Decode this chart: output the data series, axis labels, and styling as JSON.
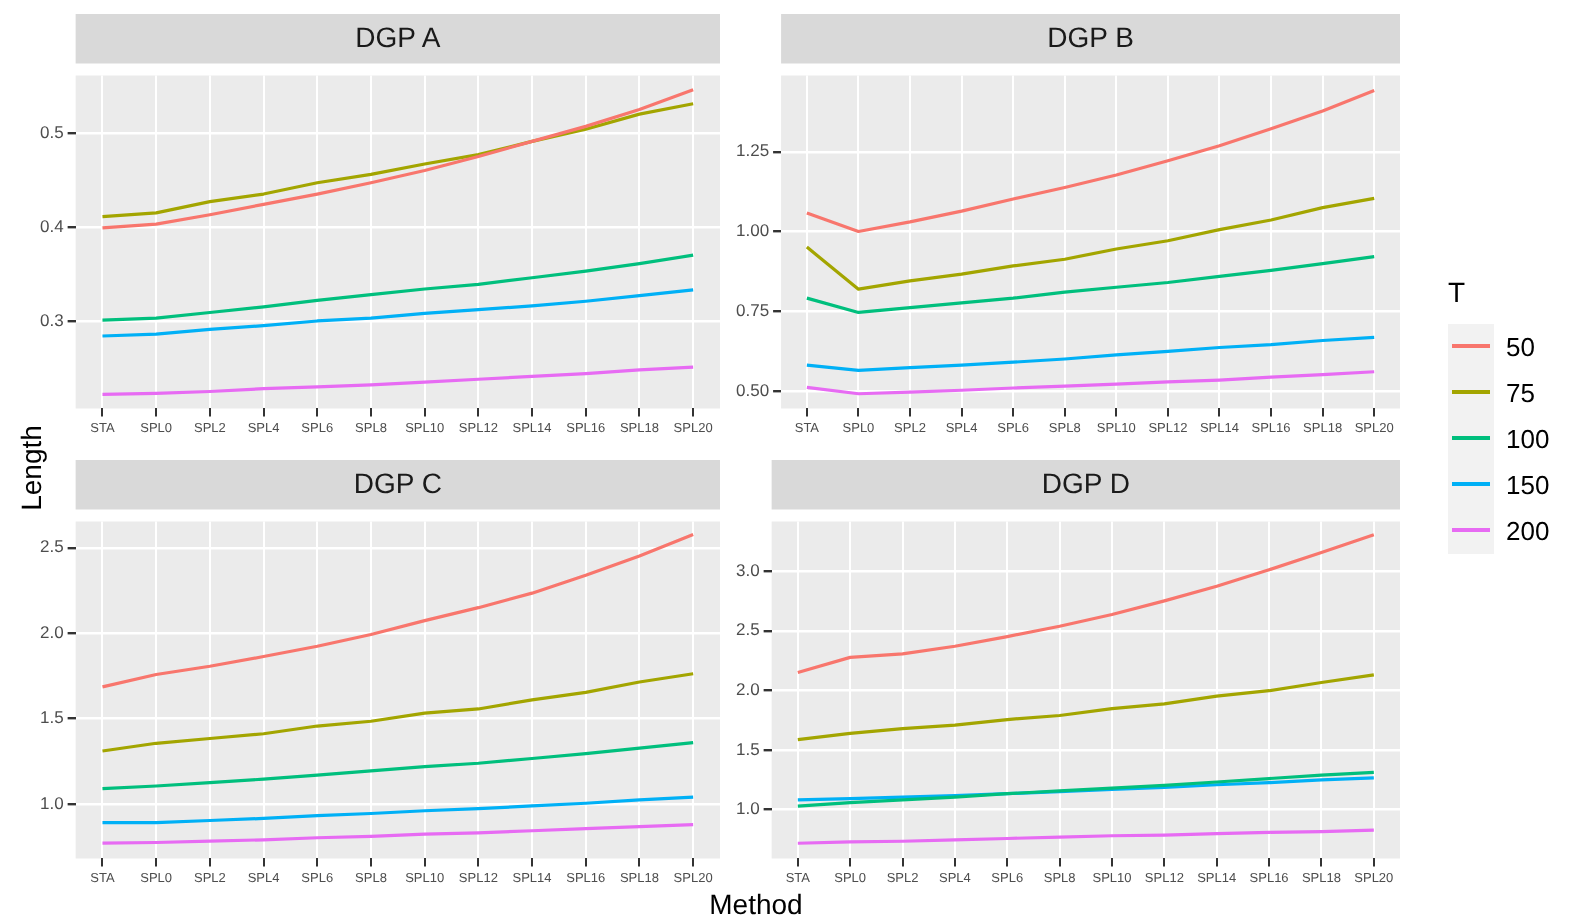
{
  "chart_data": [
    {
      "type": "line",
      "title": "DGP A",
      "xlabel": "Method",
      "ylabel": "Length",
      "legend_title": "T",
      "legend": "right",
      "grid": true,
      "categories": [
        "STA",
        "SPL0",
        "SPL2",
        "SPL4",
        "SPL6",
        "SPL8",
        "SPL10",
        "SPL12",
        "SPL14",
        "SPL16",
        "SPL18",
        "SPL20"
      ],
      "ylim": [
        0.207,
        0.561
      ],
      "yticks": [
        0.3,
        0.4,
        0.5
      ],
      "series": [
        {
          "name": "50",
          "color": "#f8766d",
          "values": [
            0.399,
            0.403,
            0.413,
            0.424,
            0.435,
            0.447,
            0.46,
            0.475,
            0.491,
            0.507,
            0.525,
            0.546
          ]
        },
        {
          "name": "75",
          "color": "#a3a500",
          "values": [
            0.411,
            0.415,
            0.427,
            0.435,
            0.447,
            0.456,
            0.467,
            0.477,
            0.491,
            0.504,
            0.52,
            0.531
          ]
        },
        {
          "name": "100",
          "color": "#00bf7d",
          "values": [
            0.301,
            0.303,
            0.309,
            0.315,
            0.322,
            0.328,
            0.334,
            0.339,
            0.346,
            0.353,
            0.361,
            0.37
          ]
        },
        {
          "name": "150",
          "color": "#00b0f6",
          "values": [
            0.284,
            0.286,
            0.291,
            0.295,
            0.3,
            0.303,
            0.308,
            0.312,
            0.316,
            0.321,
            0.327,
            0.333
          ]
        },
        {
          "name": "200",
          "color": "#e76bf3",
          "values": [
            0.222,
            0.223,
            0.225,
            0.228,
            0.23,
            0.232,
            0.235,
            0.238,
            0.241,
            0.244,
            0.248,
            0.251
          ]
        }
      ]
    },
    {
      "type": "line",
      "title": "DGP B",
      "grid": true,
      "categories": [
        "STA",
        "SPL0",
        "SPL2",
        "SPL4",
        "SPL6",
        "SPL8",
        "SPL10",
        "SPL12",
        "SPL14",
        "SPL16",
        "SPL18",
        "SPL20"
      ],
      "ylim": [
        0.445,
        1.489
      ],
      "yticks": [
        {
          "value": 0.5,
          "label": "0.50"
        },
        {
          "value": 0.75,
          "label": "0.75"
        },
        {
          "value": 1.0,
          "label": "1.00"
        },
        {
          "value": 1.25,
          "label": "1.25"
        }
      ],
      "series": [
        {
          "name": "50",
          "color": "#f8766d",
          "values": [
            1.058,
            1.0,
            1.03,
            1.064,
            1.102,
            1.138,
            1.177,
            1.222,
            1.269,
            1.322,
            1.378,
            1.442
          ]
        },
        {
          "name": "75",
          "color": "#a3a500",
          "values": [
            0.951,
            0.819,
            0.845,
            0.866,
            0.892,
            0.913,
            0.945,
            0.971,
            1.006,
            1.036,
            1.075,
            1.104
          ]
        },
        {
          "name": "100",
          "color": "#00bf7d",
          "values": [
            0.791,
            0.746,
            0.761,
            0.776,
            0.791,
            0.81,
            0.825,
            0.84,
            0.859,
            0.878,
            0.899,
            0.921
          ]
        },
        {
          "name": "150",
          "color": "#00b0f6",
          "values": [
            0.581,
            0.564,
            0.573,
            0.581,
            0.59,
            0.6,
            0.613,
            0.624,
            0.636,
            0.645,
            0.658,
            0.668
          ]
        },
        {
          "name": "200",
          "color": "#e76bf3",
          "values": [
            0.511,
            0.491,
            0.496,
            0.502,
            0.509,
            0.515,
            0.521,
            0.528,
            0.534,
            0.543,
            0.551,
            0.56
          ]
        }
      ]
    },
    {
      "type": "line",
      "title": "DGP C",
      "grid": true,
      "categories": [
        "STA",
        "SPL0",
        "SPL2",
        "SPL4",
        "SPL6",
        "SPL8",
        "SPL10",
        "SPL12",
        "SPL14",
        "SPL16",
        "SPL18",
        "SPL20"
      ],
      "ylim": [
        0.681,
        2.653
      ],
      "yticks": [
        {
          "value": 1.0,
          "label": "1.0"
        },
        1.5,
        {
          "value": 2.0,
          "label": "2.0"
        },
        2.5
      ],
      "series": [
        {
          "name": "50",
          "color": "#f8766d",
          "values": [
            1.685,
            1.758,
            1.806,
            1.863,
            1.923,
            1.992,
            2.073,
            2.149,
            2.234,
            2.339,
            2.452,
            2.577
          ]
        },
        {
          "name": "75",
          "color": "#a3a500",
          "values": [
            1.31,
            1.355,
            1.383,
            1.411,
            1.456,
            1.484,
            1.532,
            1.556,
            1.609,
            1.653,
            1.714,
            1.762
          ]
        },
        {
          "name": "100",
          "color": "#00bf7d",
          "values": [
            1.089,
            1.105,
            1.125,
            1.145,
            1.169,
            1.194,
            1.218,
            1.238,
            1.266,
            1.294,
            1.327,
            1.359
          ]
        },
        {
          "name": "150",
          "color": "#00b0f6",
          "values": [
            0.891,
            0.891,
            0.903,
            0.915,
            0.931,
            0.944,
            0.96,
            0.972,
            0.988,
            1.004,
            1.024,
            1.04
          ]
        },
        {
          "name": "200",
          "color": "#e76bf3",
          "values": [
            0.77,
            0.774,
            0.782,
            0.79,
            0.802,
            0.81,
            0.823,
            0.831,
            0.843,
            0.855,
            0.867,
            0.879
          ]
        }
      ]
    },
    {
      "type": "line",
      "title": "DGP D",
      "grid": true,
      "categories": [
        "STA",
        "SPL0",
        "SPL2",
        "SPL4",
        "SPL6",
        "SPL8",
        "SPL10",
        "SPL12",
        "SPL14",
        "SPL16",
        "SPL18",
        "SPL20"
      ],
      "ylim": [
        0.59,
        3.416
      ],
      "yticks": [
        {
          "value": 1.0,
          "label": "1.0"
        },
        1.5,
        {
          "value": 2.0,
          "label": "2.0"
        },
        2.5,
        {
          "value": 3.0,
          "label": "3.0"
        }
      ],
      "series": [
        {
          "name": "50",
          "color": "#f8766d",
          "values": [
            2.15,
            2.277,
            2.306,
            2.37,
            2.451,
            2.538,
            2.636,
            2.751,
            2.873,
            3.012,
            3.156,
            3.306
          ]
        },
        {
          "name": "75",
          "color": "#a3a500",
          "values": [
            1.587,
            1.639,
            1.679,
            1.708,
            1.755,
            1.789,
            1.847,
            1.887,
            1.951,
            1.997,
            2.066,
            2.13
          ]
        },
        {
          "name": "100",
          "color": "#00bf7d",
          "values": [
            1.029,
            1.058,
            1.081,
            1.104,
            1.133,
            1.156,
            1.179,
            1.202,
            1.231,
            1.26,
            1.289,
            1.312
          ]
        },
        {
          "name": "150",
          "color": "#00b0f6",
          "values": [
            1.081,
            1.092,
            1.104,
            1.116,
            1.133,
            1.15,
            1.168,
            1.185,
            1.208,
            1.225,
            1.249,
            1.266
          ]
        },
        {
          "name": "200",
          "color": "#e76bf3",
          "values": [
            0.717,
            0.728,
            0.734,
            0.746,
            0.757,
            0.769,
            0.78,
            0.786,
            0.798,
            0.809,
            0.815,
            0.827
          ]
        }
      ]
    }
  ]
}
